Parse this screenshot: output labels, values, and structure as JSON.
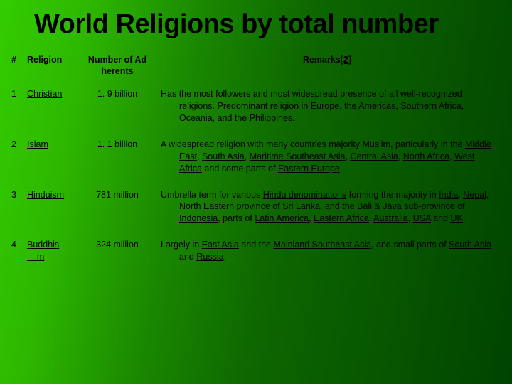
{
  "title": "World Religions by total number",
  "headers": {
    "num": "#",
    "religion": "Religion",
    "adherents_l1": "Number of Ad",
    "adherents_l2": "herents",
    "remarks": "Remarks",
    "remarks_ref": "[2]"
  },
  "rows": [
    {
      "num": "1",
      "religion": "Christian",
      "adherents": "1. 9 billion",
      "remarks_pre": "Has the most followers and most widespread presence of all well-recognized religions. Predominant religion in ",
      "links": [
        "Europe",
        "the Americas",
        "Southern Africa",
        "Oceania",
        "Philippines"
      ],
      "seps": [
        ", ",
        ", ",
        ", ",
        ", and the ",
        "."
      ]
    },
    {
      "num": "2",
      "religion": "Islam",
      "adherents": "1. 1 billion",
      "remarks_pre": "A widespread religion with many countries majority Muslim, particularly in the ",
      "links": [
        "Middle East",
        "South Asia",
        "Maritime Southeast Asia",
        "Central Asia",
        "North Africa",
        "West Africa",
        "Eastern Europe"
      ],
      "seps": [
        ", ",
        ", ",
        ", ",
        ", ",
        ", ",
        " and some parts of ",
        "."
      ]
    },
    {
      "num": "3",
      "religion": "Hinduism",
      "adherents": "781 million",
      "remarks_pre": "Umbrella term for various ",
      "pre_link": "Hindu denominations",
      "remarks_mid": " forming the majority in ",
      "links": [
        "India",
        "Nepal",
        "Sri Lanka",
        "Bali",
        "Java",
        "Indonesia",
        "Latin America",
        "Eastern Africa",
        "Australia",
        "USA",
        "UK"
      ],
      "seps": [
        ", ",
        ", North Eastern province of ",
        ", and the ",
        " & ",
        " sub-province of ",
        ", parts of ",
        ", ",
        ", ",
        ", ",
        " and ",
        "."
      ]
    },
    {
      "num": "4",
      "religion_l1": "Buddhis",
      "religion_l2": "m",
      "adherents": "324 million",
      "remarks_pre": "Largely in ",
      "links": [
        "East Asia",
        "Mainland Southeast Asia",
        "South Asia",
        "Russia"
      ],
      "seps": [
        " and the ",
        ", and small parts of ",
        " and ",
        "."
      ]
    }
  ]
}
